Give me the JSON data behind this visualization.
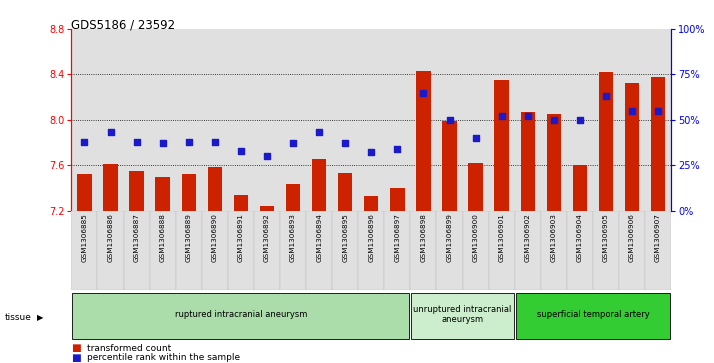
{
  "title": "GDS5186 / 23592",
  "samples": [
    "GSM1306885",
    "GSM1306886",
    "GSM1306887",
    "GSM1306888",
    "GSM1306889",
    "GSM1306890",
    "GSM1306891",
    "GSM1306892",
    "GSM1306893",
    "GSM1306894",
    "GSM1306895",
    "GSM1306896",
    "GSM1306897",
    "GSM1306898",
    "GSM1306899",
    "GSM1306900",
    "GSM1306901",
    "GSM1306902",
    "GSM1306903",
    "GSM1306904",
    "GSM1306905",
    "GSM1306906",
    "GSM1306907"
  ],
  "bar_values": [
    7.52,
    7.61,
    7.55,
    7.5,
    7.52,
    7.58,
    7.34,
    7.24,
    7.43,
    7.65,
    7.53,
    7.33,
    7.4,
    8.43,
    7.99,
    7.62,
    8.35,
    8.07,
    8.05,
    7.6,
    8.42,
    8.32,
    8.38
  ],
  "dot_percentiles": [
    38,
    43,
    38,
    37,
    38,
    38,
    33,
    30,
    37,
    43,
    37,
    32,
    34,
    65,
    50,
    40,
    52,
    52,
    50,
    50,
    63,
    55,
    55
  ],
  "ylim": [
    7.2,
    8.8
  ],
  "yticks_left": [
    7.2,
    7.6,
    8.0,
    8.4,
    8.8
  ],
  "yticks_right": [
    0,
    25,
    50,
    75,
    100
  ],
  "grid_lines": [
    7.6,
    8.0,
    8.4
  ],
  "bar_color": "#cc2200",
  "dot_color": "#1a1acc",
  "plot_bg": "#e0e0e0",
  "groups": [
    {
      "label": "ruptured intracranial aneurysm",
      "start": 0,
      "end": 13,
      "color": "#aaddaa"
    },
    {
      "label": "unruptured intracranial\naneurysm",
      "start": 13,
      "end": 17,
      "color": "#cceecc"
    },
    {
      "label": "superficial temporal artery",
      "start": 17,
      "end": 23,
      "color": "#33cc33"
    }
  ],
  "tissue_label": "tissue",
  "legend_bar_label": "transformed count",
  "legend_dot_label": "percentile rank within the sample"
}
